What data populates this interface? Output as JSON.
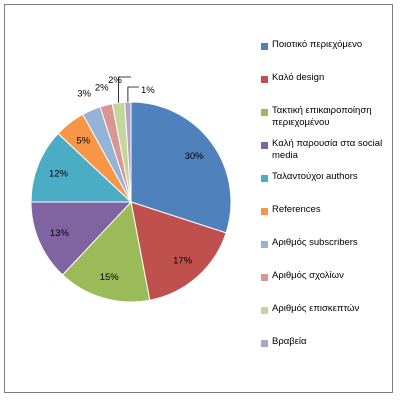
{
  "chart_data": {
    "type": "pie",
    "title": "",
    "legend_position": "right",
    "slices": [
      {
        "label": "Ποιοτικό περιεχόμενο",
        "value": 30,
        "value_label": "30%",
        "color": "#4F81BD"
      },
      {
        "label": "Καλό design",
        "value": 17,
        "value_label": "17%",
        "color": "#C0504D"
      },
      {
        "label": "Τακτική επικαιροποίηση περιεχομένου",
        "value": 15,
        "value_label": "15%",
        "color": "#9BBB59"
      },
      {
        "label": "Καλή παρουσία στα social media",
        "value": 13,
        "value_label": "13%",
        "color": "#8064A2"
      },
      {
        "label": "Ταλαντούχοι authors",
        "value": 12,
        "value_label": "12%",
        "color": "#4BACC6"
      },
      {
        "label": "References",
        "value": 5,
        "value_label": "5%",
        "color": "#F79646"
      },
      {
        "label": "Αριθμός subscribers",
        "value": 3,
        "value_label": "3%",
        "color": "#95B3D7"
      },
      {
        "label": "Αριθμός σχολίων",
        "value": 2,
        "value_label": "2%",
        "color": "#D99694"
      },
      {
        "label": "Αριθμός επισκεπτών",
        "value": 2,
        "value_label": "2%",
        "color": "#C3D69B"
      },
      {
        "label": "Βραβεία",
        "value": 1,
        "value_label": "1%",
        "color": "#B2A2C7"
      }
    ]
  }
}
